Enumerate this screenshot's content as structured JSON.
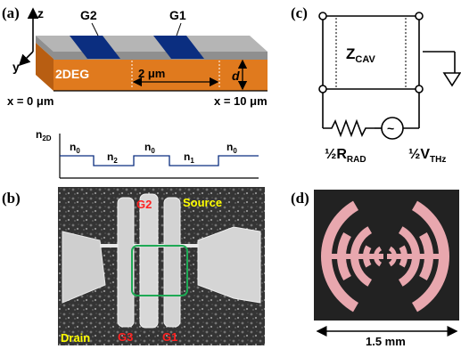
{
  "panels": {
    "a": {
      "label": "(a)",
      "axis_z": "z",
      "axis_y": "y",
      "gate2": "G2",
      "gate1": "G1",
      "layer": "2DEG",
      "length_scale": "2 μm",
      "depth_label": "d",
      "x_start": "x = 0 μm",
      "x_end": "x = 10 μm",
      "density_axis": "n",
      "density_axis_sub": "2D",
      "segments": [
        {
          "name": "n",
          "sub": "0",
          "level": "high"
        },
        {
          "name": "n",
          "sub": "2",
          "level": "low"
        },
        {
          "name": "n",
          "sub": "0",
          "level": "high"
        },
        {
          "name": "n",
          "sub": "1",
          "level": "low"
        },
        {
          "name": "n",
          "sub": "0",
          "level": "high"
        }
      ],
      "colors": {
        "substrate": "#e07a1e",
        "top": "#a9a9a9",
        "gate": "#0b2e80"
      }
    },
    "b": {
      "label": "(b)",
      "source": "Source",
      "drain": "Drain",
      "gate_top": "G2",
      "gate3": "G3",
      "gate1": "G1",
      "colors": {
        "source_drain": "#ffff00",
        "gate_labels": "#ff2020",
        "roi": "#1faa55"
      }
    },
    "c": {
      "label": "(c)",
      "z_main": "Z",
      "z_sub": "CAV",
      "r_prefix": "½R",
      "r_sub": "RAD",
      "v_prefix": "½V",
      "v_sub": "THz",
      "source_symbol": "~"
    },
    "d": {
      "label": "(d)",
      "scale": "1.5 mm",
      "colors": {
        "antenna": "#e8a7ae",
        "background": "#222222"
      }
    }
  }
}
